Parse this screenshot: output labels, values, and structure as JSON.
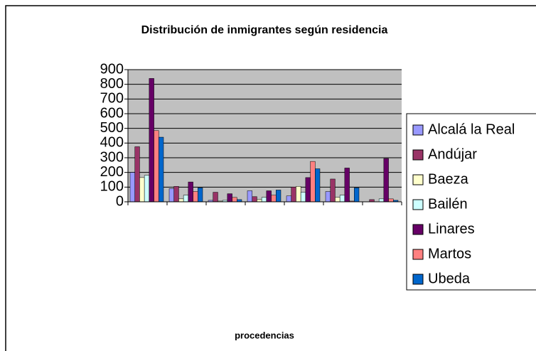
{
  "chart_data": {
    "type": "bar",
    "title": "Distribución de inmigrantes según residencia",
    "xlabel": "procedencias",
    "categories": [
      null,
      null,
      null,
      null,
      null,
      null,
      null
    ],
    "series": [
      {
        "name": "Alcalá la Real",
        "color": "#9999ff",
        "values": [
          200,
          90,
          10,
          75,
          40,
          70,
          0
        ]
      },
      {
        "name": "Andújar",
        "color": "#993366",
        "values": [
          375,
          105,
          65,
          35,
          100,
          155,
          15
        ]
      },
      {
        "name": "Baeza",
        "color": "#ffffcc",
        "values": [
          165,
          20,
          5,
          15,
          105,
          30,
          0
        ]
      },
      {
        "name": "Bailén",
        "color": "#ccffff",
        "values": [
          180,
          45,
          10,
          30,
          65,
          45,
          20
        ]
      },
      {
        "name": "Linares",
        "color": "#660066",
        "values": [
          840,
          135,
          55,
          75,
          165,
          230,
          295
        ]
      },
      {
        "name": "Martos",
        "color": "#ff8080",
        "values": [
          485,
          70,
          30,
          45,
          275,
          5,
          20
        ]
      },
      {
        "name": "Ubeda",
        "color": "#0066cc",
        "values": [
          440,
          95,
          15,
          80,
          225,
          95,
          10
        ]
      }
    ],
    "ylim": [
      0,
      900
    ],
    "yticks": [
      0,
      100,
      200,
      300,
      400,
      500,
      600,
      700,
      800,
      900
    ],
    "grid": true
  }
}
